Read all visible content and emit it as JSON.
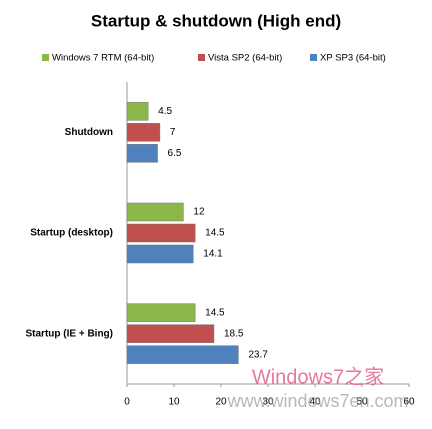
{
  "chart_data": {
    "type": "hbar",
    "title": "Startup & shutdown  (High end)",
    "categories": [
      "Shutdown",
      "Startup (desktop)",
      "Startup (IE + Bing)"
    ],
    "series": [
      {
        "name": "Windows 7 RTM  (64-bit)",
        "color": "#8cb84a",
        "values": [
          4.5,
          12,
          14.5
        ]
      },
      {
        "name": "Vista SP2 (64-bit)",
        "color": "#c0504d",
        "values": [
          7,
          14.5,
          18.5
        ]
      },
      {
        "name": "XP SP3 (64-bit)",
        "color": "#4f81bd",
        "values": [
          6.5,
          14.1,
          23.7
        ]
      }
    ],
    "xlim": [
      0,
      60
    ],
    "xticks": [
      0,
      10,
      20,
      30,
      40,
      50,
      60
    ],
    "grid": false,
    "legend": "top",
    "watermark": [
      "Windows7之家",
      "www.windows7en.com"
    ]
  }
}
